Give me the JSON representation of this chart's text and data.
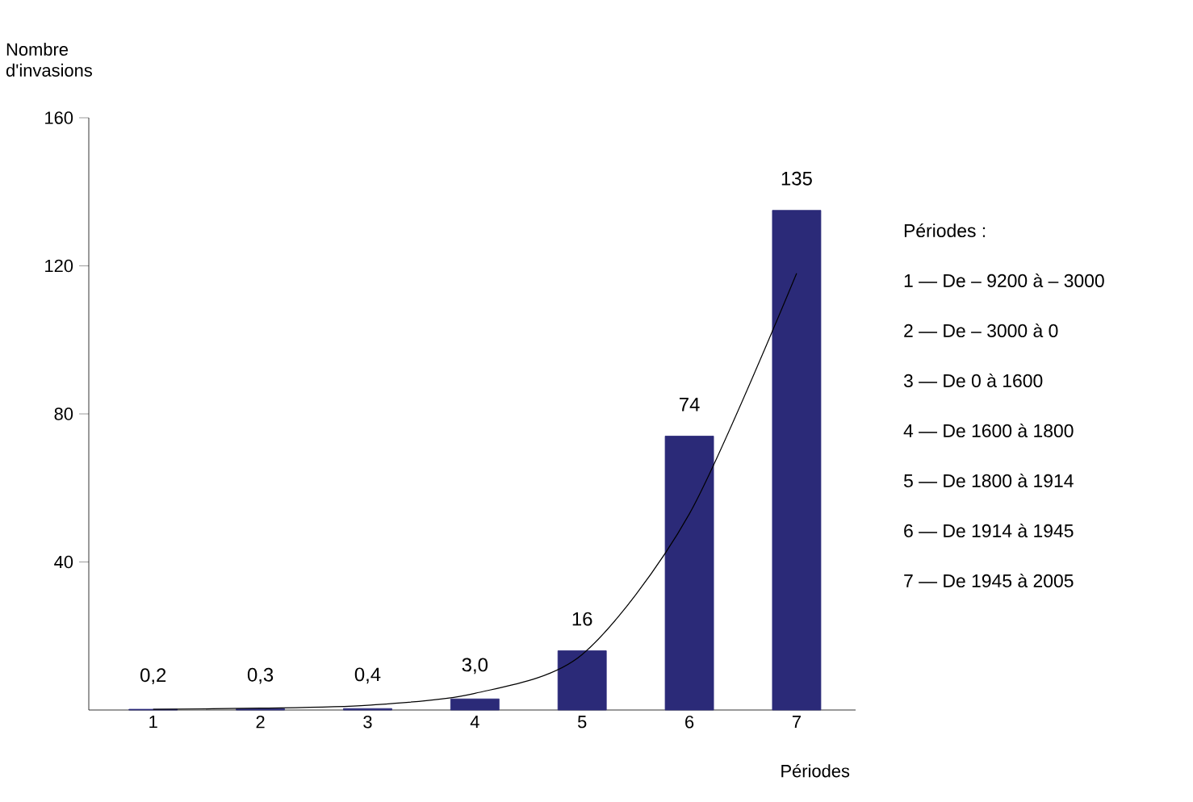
{
  "chart_data": {
    "type": "bar",
    "categories": [
      "1",
      "2",
      "3",
      "4",
      "5",
      "6",
      "7"
    ],
    "values": [
      0.2,
      0.3,
      0.4,
      3.0,
      16,
      74,
      135
    ],
    "value_labels": [
      "0,2",
      "0,3",
      "0,4",
      "3,0",
      "16",
      "74",
      "135"
    ],
    "color": "#2b2a78",
    "series": [
      {
        "type": "line",
        "color": "#000000",
        "values": [
          0.2,
          0.5,
          1.3,
          4.5,
          15,
          53,
          118
        ]
      }
    ],
    "ylabel": "Nombre d'invasions",
    "xlabel": "Périodes",
    "ylim": [
      0,
      160
    ],
    "yticks": [
      40,
      80,
      120,
      160
    ],
    "annotations": [
      "Périodes :",
      "1 — De – 9200 à – 3000",
      "2 — De – 3000 à 0",
      "3 — De 0 à 1600",
      "4 — De 1600 à 1800",
      "5 — De 1800 à 1914",
      "6 — De 1914 à 1945",
      "7 — De 1945 à 2005"
    ]
  }
}
